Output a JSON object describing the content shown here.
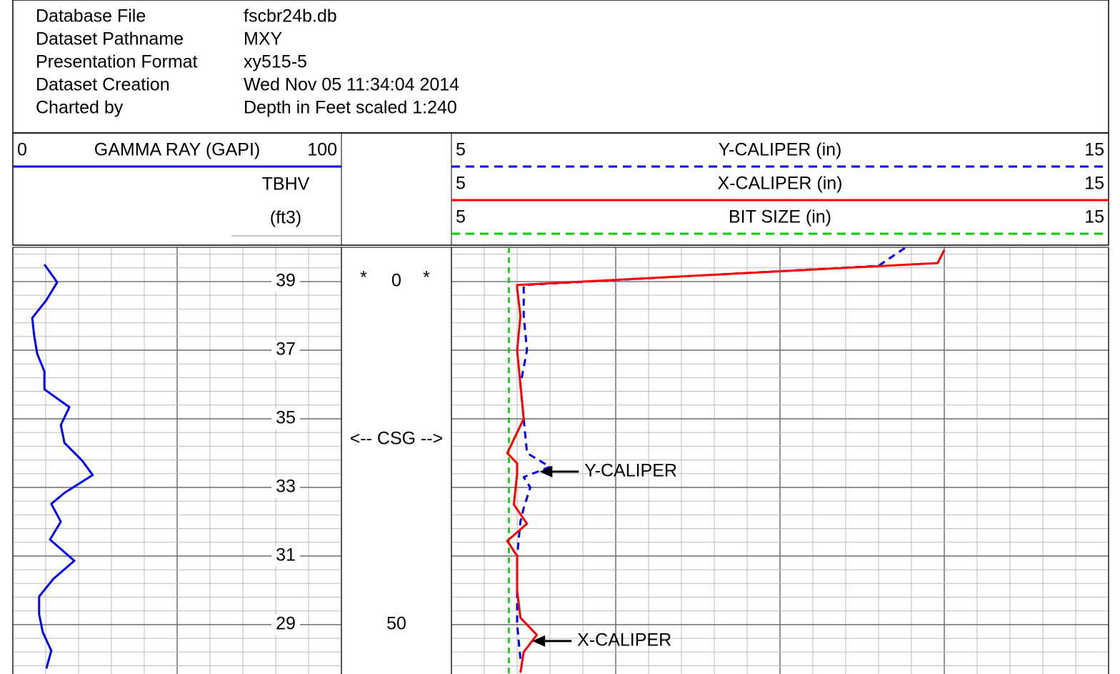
{
  "header": {
    "fields": [
      {
        "label": "Database File",
        "value": "fscbr24b.db"
      },
      {
        "label": "Dataset Pathname",
        "value": "MXY"
      },
      {
        "label": "Presentation Format",
        "value": "xy515-5"
      },
      {
        "label": "Dataset Creation",
        "value": "Wed Nov 05 11:34:04 2014"
      },
      {
        "label": "Charted by",
        "value": "Depth in Feet scaled 1:240"
      }
    ]
  },
  "tracks": {
    "gamma": {
      "name": "GAMMA RAY (GAPI)",
      "min": 0,
      "max": 100,
      "color": "#0000ff"
    },
    "tbhv": {
      "name": "TBHV",
      "unit": "(ft3)",
      "ticks": [
        {
          "depth": 0,
          "value": 39
        },
        {
          "depth": 10,
          "value": 37
        },
        {
          "depth": 20,
          "value": 35
        },
        {
          "depth": 30,
          "value": 33
        },
        {
          "depth": 40,
          "value": 31
        },
        {
          "depth": 50,
          "value": 29
        }
      ]
    },
    "depth": {
      "labels": [
        0,
        50
      ],
      "marker": "*",
      "annotation": "<-- CSG -->",
      "annotation_depth": 23
    },
    "calipers": [
      {
        "name": "Y-CALIPER (in)",
        "min": 5,
        "max": 15,
        "color": "#0000ff",
        "style": "dashed"
      },
      {
        "name": "X-CALIPER (in)",
        "min": 5,
        "max": 15,
        "color": "#ff0000",
        "style": "solid"
      },
      {
        "name": "BIT SIZE (in)",
        "min": 5,
        "max": 15,
        "color": "#00cc00",
        "style": "dashed"
      }
    ]
  },
  "depth_range": [
    -5,
    57.2
  ],
  "curves": {
    "gamma": {
      "depth": [
        -2.5,
        0.1,
        2.7,
        5.3,
        7.9,
        10.5,
        13.1,
        15.7,
        18.3,
        20.9,
        23.5,
        26.1,
        28.2,
        30.8,
        32.4,
        35,
        37.6,
        40.7,
        43.3,
        45.9,
        48.5,
        51.1,
        53.8,
        56.4
      ],
      "values": [
        9.6,
        13.5,
        10.2,
        5.9,
        6.5,
        7.4,
        9.6,
        9.6,
        17.2,
        14.6,
        15.7,
        21.1,
        24.3,
        15.7,
        11.7,
        14.6,
        11.3,
        18.7,
        12.4,
        8,
        8,
        9.1,
        11.7,
        10.2
      ]
    },
    "ycal": {
      "depth": [
        -4.9,
        -2.3,
        0.5,
        5,
        10,
        15,
        20,
        25,
        27,
        28.5,
        30,
        33,
        35,
        40,
        45,
        50,
        55
      ],
      "values": [
        11.9,
        11.5,
        6.1,
        6.1,
        6.15,
        6.05,
        6.1,
        6.15,
        6.5,
        6.1,
        6.2,
        6.1,
        6.05,
        6.0,
        6.0,
        6.0,
        6.05
      ]
    },
    "xcal": {
      "depth": [
        -4.6,
        -2.7,
        0.5,
        1,
        5,
        10,
        15,
        20,
        25,
        26.5,
        28,
        32.5,
        35.3,
        37.8,
        40,
        45,
        49,
        51.5,
        54,
        57
      ],
      "values": [
        12.5,
        12.4,
        6.0,
        6.0,
        6.05,
        6.0,
        6.05,
        6.1,
        5.85,
        6.0,
        6.0,
        5.95,
        6.15,
        5.85,
        6.0,
        6.0,
        6.05,
        6.3,
        6.1,
        6.05
      ]
    },
    "bit": {
      "depth": [
        -5,
        57.2
      ],
      "values": [
        5.875,
        5.875
      ]
    }
  },
  "annotations": [
    {
      "text": "Y-CALIPER",
      "depth": 27.7,
      "value": 6.34
    },
    {
      "text": "X-CALIPER",
      "depth": 52.4,
      "value": 6.23
    }
  ]
}
